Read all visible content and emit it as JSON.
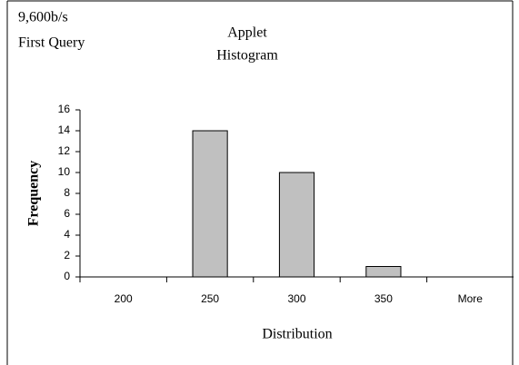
{
  "chart_data": {
    "type": "bar",
    "annotations": [
      "9,600b/s",
      "First Query"
    ],
    "title": [
      "Applet",
      "Histogram"
    ],
    "xlabel": "Distribution",
    "ylabel": "Frequency",
    "categories": [
      "200",
      "250",
      "300",
      "350",
      "More"
    ],
    "values": [
      0,
      14,
      10,
      1,
      0
    ],
    "color": "#c0c0c0",
    "ylim": [
      0,
      16
    ],
    "yticks": [
      0,
      2,
      4,
      6,
      8,
      10,
      12,
      14,
      16
    ],
    "grid": false
  }
}
